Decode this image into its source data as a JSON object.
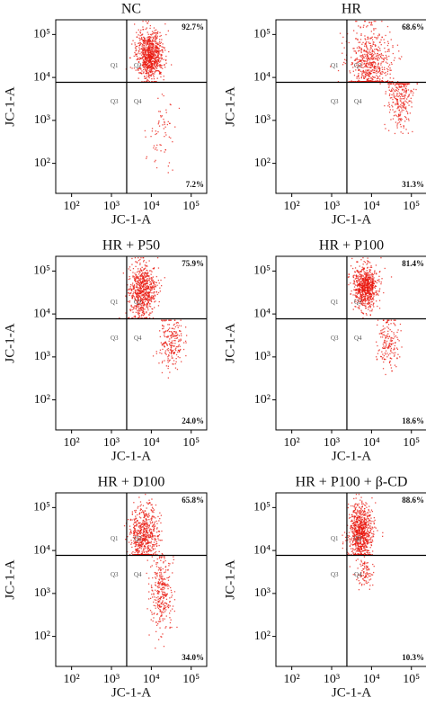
{
  "chart_data": [
    {
      "type": "flow-cytometry",
      "title": "NC",
      "xlabel": "JC-1-A",
      "ylabel": "JC-1-A",
      "log_scale": true,
      "xlim": [
        40,
        245000
      ],
      "ylim": [
        20,
        220000
      ],
      "xticks": [
        {
          "value": 100,
          "label": "10²"
        },
        {
          "value": 1000,
          "label": "10³"
        },
        {
          "value": 10000,
          "label": "10⁴"
        },
        {
          "value": 100000,
          "label": "10⁵"
        }
      ],
      "yticks": [
        {
          "value": 100,
          "label": "10²"
        },
        {
          "value": 1000,
          "label": "10³"
        },
        {
          "value": 10000,
          "label": "10⁴"
        },
        {
          "value": 100000,
          "label": "10⁵"
        }
      ],
      "quadrant_labels": [
        "Q1",
        "Q2",
        "Q3",
        "Q4"
      ],
      "values": [
        92.7,
        7.2
      ],
      "value_labels": [
        "92.7%",
        "7.2%"
      ],
      "color": "#e8160c"
    },
    {
      "type": "flow-cytometry",
      "title": "HR",
      "xlabel": "JC-1-A",
      "ylabel": "JC-1-A",
      "log_scale": true,
      "xlim": [
        40,
        245000
      ],
      "ylim": [
        20,
        220000
      ],
      "xticks": [
        {
          "value": 100,
          "label": "10²"
        },
        {
          "value": 1000,
          "label": "10³"
        },
        {
          "value": 10000,
          "label": "10⁴"
        },
        {
          "value": 100000,
          "label": "10⁵"
        }
      ],
      "yticks": [
        {
          "value": 100,
          "label": "10²"
        },
        {
          "value": 1000,
          "label": "10³"
        },
        {
          "value": 10000,
          "label": "10⁴"
        },
        {
          "value": 100000,
          "label": "10⁵"
        }
      ],
      "quadrant_labels": [
        "Q1",
        "Q2",
        "Q3",
        "Q4"
      ],
      "values": [
        68.6,
        31.3
      ],
      "value_labels": [
        "68.6%",
        "31.3%"
      ],
      "color": "#e8160c"
    },
    {
      "type": "flow-cytometry",
      "title": "HR + P50",
      "xlabel": "JC-1-A",
      "ylabel": "JC-1-A",
      "log_scale": true,
      "xlim": [
        40,
        245000
      ],
      "ylim": [
        20,
        220000
      ],
      "xticks": [
        {
          "value": 100,
          "label": "10²"
        },
        {
          "value": 1000,
          "label": "10³"
        },
        {
          "value": 10000,
          "label": "10⁴"
        },
        {
          "value": 100000,
          "label": "10⁵"
        }
      ],
      "yticks": [
        {
          "value": 100,
          "label": "10²"
        },
        {
          "value": 1000,
          "label": "10³"
        },
        {
          "value": 10000,
          "label": "10⁴"
        },
        {
          "value": 100000,
          "label": "10⁵"
        }
      ],
      "quadrant_labels": [
        "Q1",
        "Q2",
        "Q3",
        "Q4"
      ],
      "values": [
        75.9,
        24.0
      ],
      "value_labels": [
        "75.9%",
        "24.0%"
      ],
      "color": "#e8160c"
    },
    {
      "type": "flow-cytometry",
      "title": "HR + P100",
      "xlabel": "JC-1-A",
      "ylabel": "JC-1-A",
      "log_scale": true,
      "xlim": [
        40,
        245000
      ],
      "ylim": [
        20,
        220000
      ],
      "xticks": [
        {
          "value": 100,
          "label": "10²"
        },
        {
          "value": 1000,
          "label": "10³"
        },
        {
          "value": 10000,
          "label": "10⁴"
        },
        {
          "value": 100000,
          "label": "10⁵"
        }
      ],
      "yticks": [
        {
          "value": 100,
          "label": "10²"
        },
        {
          "value": 1000,
          "label": "10³"
        },
        {
          "value": 10000,
          "label": "10⁴"
        },
        {
          "value": 100000,
          "label": "10⁵"
        }
      ],
      "quadrant_labels": [
        "Q1",
        "Q2",
        "Q3",
        "Q4"
      ],
      "values": [
        81.4,
        18.6
      ],
      "value_labels": [
        "81.4%",
        "18.6%"
      ],
      "color": "#e8160c"
    },
    {
      "type": "flow-cytometry",
      "title": "HR + D100",
      "xlabel": "JC-1-A",
      "ylabel": "JC-1-A",
      "log_scale": true,
      "xlim": [
        40,
        245000
      ],
      "ylim": [
        20,
        220000
      ],
      "xticks": [
        {
          "value": 100,
          "label": "10²"
        },
        {
          "value": 1000,
          "label": "10³"
        },
        {
          "value": 10000,
          "label": "10⁴"
        },
        {
          "value": 100000,
          "label": "10⁵"
        }
      ],
      "yticks": [
        {
          "value": 100,
          "label": "10²"
        },
        {
          "value": 1000,
          "label": "10³"
        },
        {
          "value": 10000,
          "label": "10⁴"
        },
        {
          "value": 100000,
          "label": "10⁵"
        }
      ],
      "quadrant_labels": [
        "Q1",
        "Q2",
        "Q3",
        "Q4"
      ],
      "values": [
        65.8,
        34.0
      ],
      "value_labels": [
        "65.8%",
        "34.0%"
      ],
      "color": "#e8160c"
    },
    {
      "type": "flow-cytometry",
      "title": "HR + P100 + β-CD",
      "xlabel": "JC-1-A",
      "ylabel": "JC-1-A",
      "log_scale": true,
      "xlim": [
        40,
        245000
      ],
      "ylim": [
        20,
        220000
      ],
      "xticks": [
        {
          "value": 100,
          "label": "10²"
        },
        {
          "value": 1000,
          "label": "10³"
        },
        {
          "value": 10000,
          "label": "10⁴"
        },
        {
          "value": 100000,
          "label": "10⁵"
        }
      ],
      "yticks": [
        {
          "value": 100,
          "label": "10²"
        },
        {
          "value": 1000,
          "label": "10³"
        },
        {
          "value": 10000,
          "label": "10⁴"
        },
        {
          "value": 100000,
          "label": "10⁵"
        }
      ],
      "quadrant_labels": [
        "Q1",
        "Q2",
        "Q3",
        "Q4"
      ],
      "values": [
        88.6,
        10.3
      ],
      "value_labels": [
        "88.6%",
        "10.3%"
      ],
      "color": "#e8160c"
    }
  ]
}
